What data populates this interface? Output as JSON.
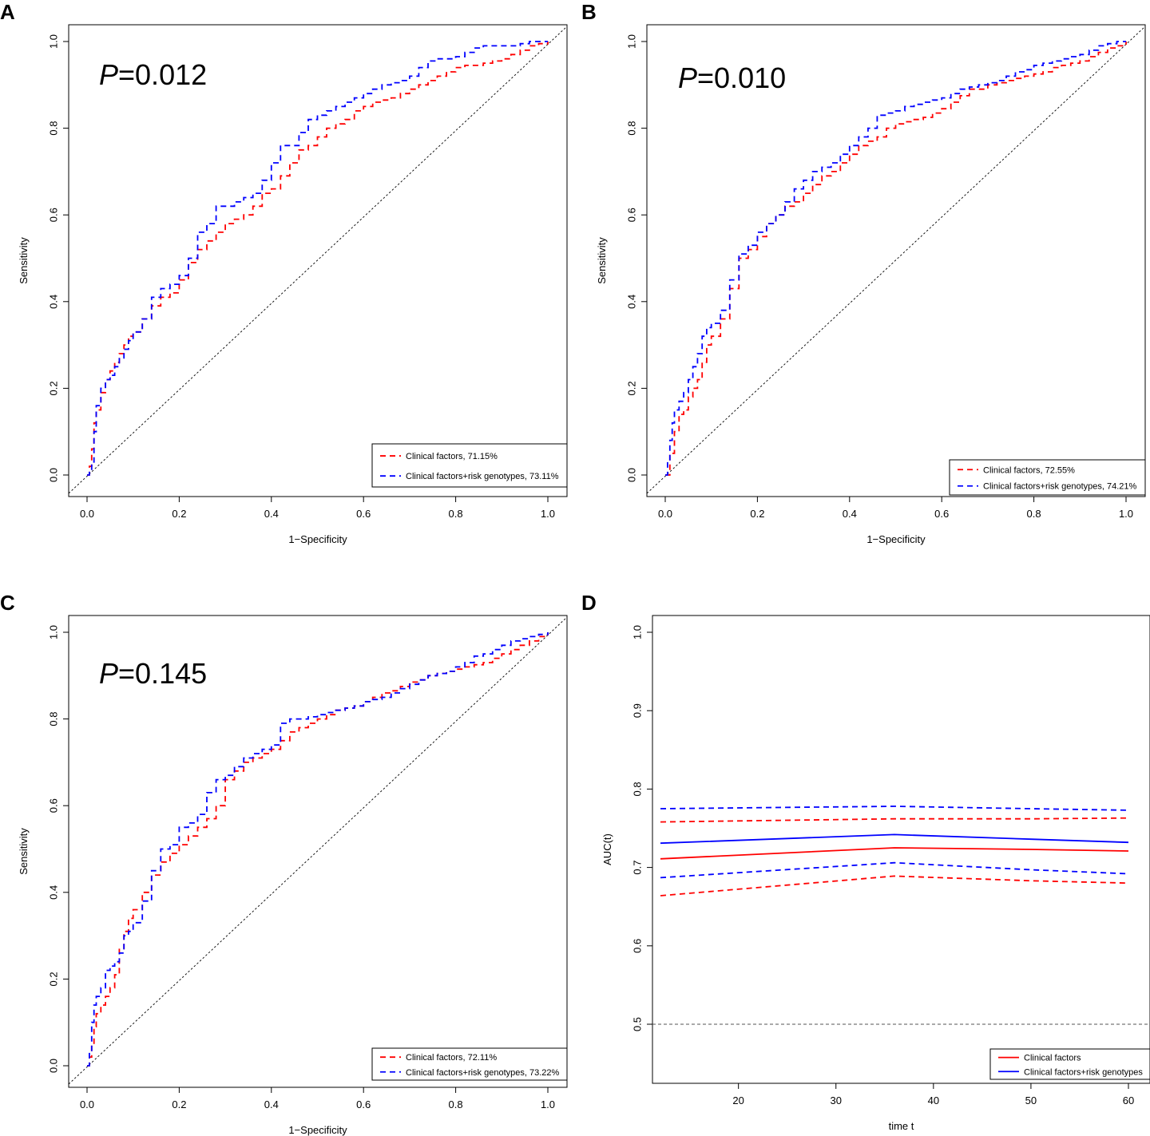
{
  "chart_data": [
    {
      "panel": "A",
      "type": "line",
      "xlabel": "1−Specificity",
      "ylabel": "Sensitivity",
      "xlim": [
        0,
        1
      ],
      "ylim": [
        0,
        1
      ],
      "xticks": [
        "0.0",
        "0.2",
        "0.4",
        "0.6",
        "0.8",
        "1.0"
      ],
      "yticks": [
        "0.0",
        "0.2",
        "0.4",
        "0.6",
        "0.8",
        "1.0"
      ],
      "p_label": "P",
      "p_value": "=0.012",
      "reference_line": "diagonal",
      "legend_position": "bottom-right",
      "series": [
        {
          "name": "Clinical factors, 71.15%",
          "color": "#ff0000",
          "style": "dashed",
          "x": [
            0,
            0.005,
            0.01,
            0.015,
            0.02,
            0.03,
            0.04,
            0.05,
            0.06,
            0.07,
            0.08,
            0.09,
            0.1,
            0.12,
            0.14,
            0.16,
            0.18,
            0.2,
            0.22,
            0.24,
            0.26,
            0.28,
            0.3,
            0.32,
            0.34,
            0.36,
            0.38,
            0.4,
            0.42,
            0.44,
            0.46,
            0.48,
            0.5,
            0.52,
            0.54,
            0.56,
            0.58,
            0.6,
            0.62,
            0.64,
            0.66,
            0.68,
            0.7,
            0.72,
            0.74,
            0.76,
            0.78,
            0.8,
            0.82,
            0.84,
            0.86,
            0.88,
            0.9,
            0.92,
            0.94,
            0.96,
            0.98,
            1.0
          ],
          "y": [
            0,
            0.02,
            0.06,
            0.12,
            0.15,
            0.19,
            0.22,
            0.24,
            0.26,
            0.28,
            0.3,
            0.32,
            0.33,
            0.36,
            0.39,
            0.41,
            0.42,
            0.45,
            0.49,
            0.52,
            0.54,
            0.56,
            0.58,
            0.59,
            0.6,
            0.62,
            0.65,
            0.66,
            0.69,
            0.72,
            0.75,
            0.76,
            0.78,
            0.8,
            0.81,
            0.82,
            0.84,
            0.85,
            0.86,
            0.865,
            0.87,
            0.88,
            0.89,
            0.9,
            0.91,
            0.92,
            0.93,
            0.94,
            0.945,
            0.945,
            0.95,
            0.955,
            0.96,
            0.97,
            0.98,
            0.99,
            0.995,
            1.0
          ]
        },
        {
          "name": "Clinical factors+risk genotypes, 73.11%",
          "color": "#0000ff",
          "style": "dashed",
          "x": [
            0,
            0.005,
            0.01,
            0.015,
            0.02,
            0.03,
            0.04,
            0.05,
            0.06,
            0.07,
            0.08,
            0.09,
            0.1,
            0.12,
            0.14,
            0.16,
            0.18,
            0.2,
            0.22,
            0.24,
            0.26,
            0.28,
            0.3,
            0.32,
            0.34,
            0.36,
            0.38,
            0.4,
            0.42,
            0.44,
            0.46,
            0.48,
            0.5,
            0.52,
            0.54,
            0.56,
            0.58,
            0.6,
            0.62,
            0.64,
            0.66,
            0.68,
            0.7,
            0.72,
            0.74,
            0.76,
            0.78,
            0.8,
            0.82,
            0.84,
            0.86,
            0.88,
            0.9,
            0.92,
            0.94,
            0.96,
            0.98,
            1.0
          ],
          "y": [
            0,
            0.01,
            0.03,
            0.1,
            0.16,
            0.2,
            0.22,
            0.23,
            0.25,
            0.27,
            0.29,
            0.31,
            0.33,
            0.36,
            0.41,
            0.43,
            0.44,
            0.46,
            0.5,
            0.56,
            0.58,
            0.62,
            0.62,
            0.63,
            0.64,
            0.65,
            0.68,
            0.72,
            0.76,
            0.76,
            0.79,
            0.82,
            0.83,
            0.84,
            0.85,
            0.86,
            0.87,
            0.88,
            0.89,
            0.9,
            0.905,
            0.91,
            0.92,
            0.94,
            0.955,
            0.96,
            0.96,
            0.965,
            0.975,
            0.985,
            0.99,
            0.99,
            0.99,
            0.99,
            0.995,
            1.0,
            1.0,
            1.0
          ]
        }
      ]
    },
    {
      "panel": "B",
      "type": "line",
      "xlabel": "1−Specificity",
      "ylabel": "Sensitivity",
      "xlim": [
        0,
        1
      ],
      "ylim": [
        0,
        1
      ],
      "xticks": [
        "0.0",
        "0.2",
        "0.4",
        "0.6",
        "0.8",
        "1.0"
      ],
      "yticks": [
        "0.0",
        "0.2",
        "0.4",
        "0.6",
        "0.8",
        "1.0"
      ],
      "p_label": "P",
      "p_value": "=0.010",
      "reference_line": "diagonal",
      "legend_position": "bottom-right",
      "series": [
        {
          "name": "Clinical factors, 72.55%",
          "color": "#ff0000",
          "style": "dashed",
          "x": [
            0,
            0.01,
            0.02,
            0.03,
            0.04,
            0.05,
            0.06,
            0.07,
            0.08,
            0.09,
            0.1,
            0.12,
            0.14,
            0.16,
            0.18,
            0.2,
            0.22,
            0.24,
            0.26,
            0.28,
            0.3,
            0.32,
            0.34,
            0.36,
            0.38,
            0.4,
            0.42,
            0.44,
            0.46,
            0.48,
            0.5,
            0.52,
            0.54,
            0.56,
            0.58,
            0.6,
            0.62,
            0.64,
            0.66,
            0.68,
            0.7,
            0.72,
            0.74,
            0.76,
            0.78,
            0.8,
            0.82,
            0.84,
            0.86,
            0.88,
            0.9,
            0.92,
            0.94,
            0.96,
            0.98,
            1.0
          ],
          "y": [
            0,
            0.05,
            0.1,
            0.14,
            0.15,
            0.18,
            0.2,
            0.22,
            0.26,
            0.3,
            0.32,
            0.36,
            0.43,
            0.5,
            0.52,
            0.55,
            0.58,
            0.6,
            0.62,
            0.63,
            0.65,
            0.67,
            0.69,
            0.7,
            0.72,
            0.74,
            0.76,
            0.77,
            0.78,
            0.8,
            0.81,
            0.815,
            0.82,
            0.825,
            0.835,
            0.845,
            0.86,
            0.875,
            0.89,
            0.89,
            0.9,
            0.905,
            0.91,
            0.915,
            0.92,
            0.925,
            0.93,
            0.94,
            0.945,
            0.95,
            0.955,
            0.965,
            0.975,
            0.985,
            0.99,
            1.0
          ]
        },
        {
          "name": "Clinical factors+risk genotypes, 74.21%",
          "color": "#0000ff",
          "style": "dashed",
          "x": [
            0,
            0.005,
            0.01,
            0.015,
            0.02,
            0.03,
            0.04,
            0.05,
            0.06,
            0.07,
            0.08,
            0.09,
            0.1,
            0.12,
            0.14,
            0.16,
            0.18,
            0.2,
            0.22,
            0.24,
            0.26,
            0.28,
            0.3,
            0.32,
            0.34,
            0.36,
            0.38,
            0.4,
            0.42,
            0.44,
            0.46,
            0.48,
            0.5,
            0.52,
            0.54,
            0.56,
            0.58,
            0.6,
            0.62,
            0.64,
            0.66,
            0.68,
            0.7,
            0.72,
            0.74,
            0.76,
            0.78,
            0.8,
            0.82,
            0.84,
            0.86,
            0.88,
            0.9,
            0.92,
            0.94,
            0.96,
            0.98,
            1.0
          ],
          "y": [
            0,
            0.03,
            0.08,
            0.12,
            0.15,
            0.17,
            0.19,
            0.22,
            0.25,
            0.28,
            0.32,
            0.34,
            0.35,
            0.38,
            0.45,
            0.51,
            0.53,
            0.56,
            0.58,
            0.6,
            0.63,
            0.66,
            0.68,
            0.7,
            0.71,
            0.72,
            0.74,
            0.76,
            0.78,
            0.8,
            0.83,
            0.835,
            0.84,
            0.85,
            0.855,
            0.86,
            0.865,
            0.87,
            0.88,
            0.89,
            0.895,
            0.9,
            0.905,
            0.91,
            0.92,
            0.93,
            0.935,
            0.945,
            0.95,
            0.955,
            0.96,
            0.965,
            0.97,
            0.98,
            0.99,
            0.995,
            1.0,
            1.0
          ]
        }
      ]
    },
    {
      "panel": "C",
      "type": "line",
      "xlabel": "1−Specificity",
      "ylabel": "Sensitivity",
      "xlim": [
        0,
        1
      ],
      "ylim": [
        0,
        1
      ],
      "xticks": [
        "0.0",
        "0.2",
        "0.4",
        "0.6",
        "0.8",
        "1.0"
      ],
      "yticks": [
        "0.0",
        "0.2",
        "0.4",
        "0.6",
        "0.8",
        "1.0"
      ],
      "p_label": "P",
      "p_value": "=0.145",
      "reference_line": "diagonal",
      "legend_position": "bottom-right",
      "series": [
        {
          "name": "Clinical factors, 72.11%",
          "color": "#ff0000",
          "style": "dashed",
          "x": [
            0,
            0.005,
            0.01,
            0.015,
            0.02,
            0.03,
            0.04,
            0.05,
            0.06,
            0.07,
            0.08,
            0.09,
            0.1,
            0.12,
            0.14,
            0.16,
            0.18,
            0.2,
            0.22,
            0.24,
            0.26,
            0.28,
            0.3,
            0.32,
            0.34,
            0.36,
            0.38,
            0.4,
            0.42,
            0.44,
            0.46,
            0.48,
            0.5,
            0.52,
            0.54,
            0.56,
            0.58,
            0.6,
            0.62,
            0.64,
            0.66,
            0.68,
            0.7,
            0.72,
            0.74,
            0.76,
            0.78,
            0.8,
            0.82,
            0.84,
            0.86,
            0.88,
            0.9,
            0.92,
            0.94,
            0.96,
            0.98,
            1.0
          ],
          "y": [
            0,
            0.02,
            0.05,
            0.09,
            0.12,
            0.14,
            0.16,
            0.18,
            0.21,
            0.27,
            0.31,
            0.34,
            0.36,
            0.4,
            0.44,
            0.47,
            0.49,
            0.51,
            0.53,
            0.55,
            0.57,
            0.6,
            0.66,
            0.68,
            0.7,
            0.71,
            0.72,
            0.73,
            0.75,
            0.77,
            0.78,
            0.79,
            0.8,
            0.81,
            0.82,
            0.825,
            0.83,
            0.84,
            0.85,
            0.86,
            0.865,
            0.875,
            0.885,
            0.89,
            0.9,
            0.905,
            0.91,
            0.915,
            0.92,
            0.925,
            0.93,
            0.94,
            0.95,
            0.96,
            0.97,
            0.98,
            0.99,
            1.0
          ]
        },
        {
          "name": "Clinical factors+risk genotypes, 73.22%",
          "color": "#0000ff",
          "style": "dashed",
          "x": [
            0,
            0.005,
            0.01,
            0.015,
            0.02,
            0.03,
            0.04,
            0.05,
            0.06,
            0.07,
            0.08,
            0.09,
            0.1,
            0.12,
            0.14,
            0.16,
            0.18,
            0.2,
            0.22,
            0.24,
            0.26,
            0.28,
            0.3,
            0.32,
            0.34,
            0.36,
            0.38,
            0.4,
            0.42,
            0.44,
            0.46,
            0.48,
            0.5,
            0.52,
            0.54,
            0.56,
            0.58,
            0.6,
            0.62,
            0.64,
            0.66,
            0.68,
            0.7,
            0.72,
            0.74,
            0.76,
            0.78,
            0.8,
            0.82,
            0.84,
            0.86,
            0.88,
            0.9,
            0.92,
            0.94,
            0.96,
            0.98,
            1.0
          ],
          "y": [
            0,
            0.03,
            0.1,
            0.14,
            0.16,
            0.18,
            0.22,
            0.23,
            0.24,
            0.26,
            0.3,
            0.31,
            0.33,
            0.38,
            0.45,
            0.5,
            0.51,
            0.55,
            0.56,
            0.58,
            0.63,
            0.66,
            0.67,
            0.69,
            0.71,
            0.72,
            0.73,
            0.74,
            0.79,
            0.8,
            0.8,
            0.805,
            0.81,
            0.815,
            0.82,
            0.825,
            0.83,
            0.84,
            0.845,
            0.85,
            0.86,
            0.87,
            0.88,
            0.89,
            0.9,
            0.905,
            0.91,
            0.92,
            0.93,
            0.945,
            0.95,
            0.96,
            0.97,
            0.98,
            0.985,
            0.99,
            0.995,
            1.0
          ]
        }
      ]
    },
    {
      "panel": "D",
      "type": "line",
      "xlabel": "time t",
      "ylabel": "AUC(t)",
      "xlim": [
        11,
        61
      ],
      "ylim": [
        0.45,
        1.02
      ],
      "xticks": [
        "20",
        "30",
        "40",
        "50",
        "60"
      ],
      "yticks": [
        "0.5",
        "0.6",
        "0.7",
        "0.8",
        "0.9",
        "1.0"
      ],
      "reference_line": {
        "y": 0.5,
        "style": "dashed",
        "color": "#555555"
      },
      "legend_position": "bottom-right",
      "series": [
        {
          "name": "Clinical factors",
          "color": "#ff0000",
          "style": "solid",
          "in_legend": true,
          "x": [
            12,
            36,
            50,
            60
          ],
          "y": [
            0.711,
            0.725,
            0.723,
            0.721
          ]
        },
        {
          "name": "Clinical factors+risk genotypes",
          "color": "#0000ff",
          "style": "solid",
          "in_legend": true,
          "x": [
            12,
            36,
            50,
            60
          ],
          "y": [
            0.731,
            0.742,
            0.736,
            0.732
          ]
        },
        {
          "name": "Clinical factors upper CI",
          "color": "#ff0000",
          "style": "dashed",
          "in_legend": false,
          "x": [
            12,
            36,
            50,
            60
          ],
          "y": [
            0.758,
            0.762,
            0.762,
            0.763
          ]
        },
        {
          "name": "Clinical factors lower CI",
          "color": "#ff0000",
          "style": "dashed",
          "in_legend": false,
          "x": [
            12,
            36,
            50,
            60
          ],
          "y": [
            0.664,
            0.689,
            0.683,
            0.68
          ]
        },
        {
          "name": "Clinical factors+risk genotypes upper CI",
          "color": "#0000ff",
          "style": "dashed",
          "in_legend": false,
          "x": [
            12,
            36,
            50,
            60
          ],
          "y": [
            0.775,
            0.778,
            0.775,
            0.773
          ]
        },
        {
          "name": "Clinical factors+risk genotypes lower CI",
          "color": "#0000ff",
          "style": "dashed",
          "in_legend": false,
          "x": [
            12,
            36,
            50,
            60
          ],
          "y": [
            0.687,
            0.706,
            0.697,
            0.692
          ]
        }
      ]
    }
  ]
}
